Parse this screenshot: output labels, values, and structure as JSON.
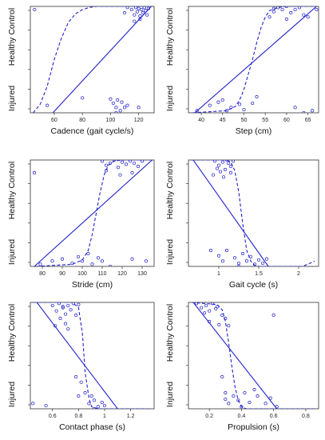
{
  "chart_data": [
    {
      "type": "scatter",
      "xlabel": "Cadence (gait cycle/s)",
      "ylabel_top": "Healthy Control",
      "ylabel_bottom": "Injured",
      "x_ticks": [
        60,
        80,
        100,
        120
      ],
      "xlim": [
        43,
        131
      ],
      "ylim": [
        0,
        1
      ],
      "grid": false,
      "points": [
        [
          46,
          0.97
        ],
        [
          110,
          0.94
        ],
        [
          112,
          0.99
        ],
        [
          115,
          0.97
        ],
        [
          117,
          0.92
        ],
        [
          118,
          0.99
        ],
        [
          119,
          0.95
        ],
        [
          120,
          0.98
        ],
        [
          121,
          0.91
        ],
        [
          122,
          0.97
        ],
        [
          123,
          0.94
        ],
        [
          124,
          0.99
        ],
        [
          125,
          0.96
        ],
        [
          126,
          0.92
        ],
        [
          127,
          0.98
        ],
        [
          117,
          0.86
        ],
        [
          121,
          0.88
        ],
        [
          100,
          0.13
        ],
        [
          102,
          0.09
        ],
        [
          104,
          0.05
        ],
        [
          105,
          0.12
        ],
        [
          107,
          0.02
        ],
        [
          108,
          0.1
        ],
        [
          110,
          0.05
        ],
        [
          112,
          0.07
        ],
        [
          80,
          0.14
        ],
        [
          55,
          0.07
        ],
        [
          104,
          0.0
        ],
        [
          120,
          0.05
        ]
      ],
      "linear_fit": [
        [
          59,
          0
        ],
        [
          129,
          1
        ]
      ],
      "logistic_fit": [
        [
          45,
          0
        ],
        [
          50,
          0.08
        ],
        [
          55,
          0.25
        ],
        [
          60,
          0.5
        ],
        [
          65,
          0.7
        ],
        [
          70,
          0.85
        ],
        [
          75,
          0.93
        ],
        [
          80,
          0.97
        ],
        [
          85,
          0.99
        ],
        [
          90,
          1
        ],
        [
          130,
          1
        ]
      ],
      "color": "#2222cc"
    },
    {
      "type": "scatter",
      "xlabel": "Step (cm)",
      "ylabel_top": "Healthy Control",
      "ylabel_bottom": "Injured",
      "x_ticks": [
        40,
        45,
        50,
        55,
        60,
        65
      ],
      "xlim": [
        37,
        67.5
      ],
      "ylim": [
        0,
        1
      ],
      "grid": false,
      "points": [
        [
          57,
          0.95
        ],
        [
          58,
          0.99
        ],
        [
          59,
          0.97
        ],
        [
          60,
          1.0
        ],
        [
          61,
          0.94
        ],
        [
          62,
          0.97
        ],
        [
          63,
          0.99
        ],
        [
          64,
          0.92
        ],
        [
          56,
          0.9
        ],
        [
          60,
          0.88
        ],
        [
          65,
          0.9
        ],
        [
          67,
          0.97
        ],
        [
          57,
          0.98
        ],
        [
          39,
          0.02
        ],
        [
          42,
          0.07
        ],
        [
          44,
          0.1
        ],
        [
          45,
          0.12
        ],
        [
          47,
          0.05
        ],
        [
          50,
          0.03
        ],
        [
          52,
          0.09
        ],
        [
          53,
          0.15
        ],
        [
          49,
          0.08
        ],
        [
          46,
          0.02
        ],
        [
          62,
          0.05
        ],
        [
          64,
          0.0
        ],
        [
          66,
          0.02
        ]
      ],
      "linear_fit": [
        [
          38.5,
          0
        ],
        [
          67,
          1
        ]
      ],
      "logistic_fit": [
        [
          38,
          0
        ],
        [
          46,
          0.02
        ],
        [
          48,
          0.06
        ],
        [
          49,
          0.12
        ],
        [
          50,
          0.22
        ],
        [
          51,
          0.36
        ],
        [
          52,
          0.5
        ],
        [
          53,
          0.66
        ],
        [
          54,
          0.8
        ],
        [
          55,
          0.9
        ],
        [
          56,
          0.96
        ],
        [
          58,
          0.99
        ],
        [
          60,
          1
        ],
        [
          67,
          1
        ]
      ],
      "color": "#2222cc"
    },
    {
      "type": "scatter",
      "xlabel": "Stride (cm)",
      "ylabel_top": "Healthy Control",
      "ylabel_bottom": "Injured",
      "x_ticks": [
        80,
        90,
        100,
        110,
        120,
        130
      ],
      "xlim": [
        74,
        136
      ],
      "ylim": [
        0,
        1
      ],
      "grid": false,
      "points": [
        [
          110,
          0.99
        ],
        [
          112,
          0.95
        ],
        [
          114,
          0.97
        ],
        [
          116,
          1.0
        ],
        [
          118,
          0.93
        ],
        [
          120,
          0.98
        ],
        [
          122,
          0.96
        ],
        [
          124,
          0.99
        ],
        [
          126,
          0.97
        ],
        [
          128,
          0.94
        ],
        [
          130,
          0.99
        ],
        [
          112,
          0.9
        ],
        [
          119,
          0.86
        ],
        [
          125,
          0.88
        ],
        [
          76,
          0.88
        ],
        [
          79,
          0.02
        ],
        [
          85,
          0.05
        ],
        [
          90,
          0.07
        ],
        [
          95,
          0.03
        ],
        [
          98,
          0.09
        ],
        [
          100,
          0.05
        ],
        [
          103,
          0.12
        ],
        [
          105,
          0.02
        ],
        [
          108,
          0.08
        ],
        [
          110,
          0.05
        ],
        [
          125,
          0.07
        ],
        [
          132,
          0.05
        ],
        [
          114,
          0.0
        ]
      ],
      "linear_fit": [
        [
          76,
          0
        ],
        [
          135,
          1
        ]
      ],
      "logistic_fit": [
        [
          77,
          0
        ],
        [
          95,
          0.02
        ],
        [
          100,
          0.06
        ],
        [
          103,
          0.15
        ],
        [
          105,
          0.3
        ],
        [
          107,
          0.5
        ],
        [
          109,
          0.7
        ],
        [
          111,
          0.86
        ],
        [
          113,
          0.95
        ],
        [
          116,
          0.99
        ],
        [
          120,
          1
        ],
        [
          134,
          1
        ]
      ],
      "color": "#2222cc"
    },
    {
      "type": "scatter",
      "xlabel": "Gait cycle (s)",
      "ylabel_top": "Healthy Control",
      "ylabel_bottom": "Injured",
      "x_ticks": [
        1.0,
        1.5,
        2.0
      ],
      "xlim": [
        0.62,
        2.25
      ],
      "ylim": [
        0,
        1
      ],
      "grid": false,
      "points": [
        [
          0.95,
          0.99
        ],
        [
          1.0,
          0.95
        ],
        [
          1.05,
          0.98
        ],
        [
          1.1,
          1.0
        ],
        [
          1.15,
          0.94
        ],
        [
          0.98,
          0.92
        ],
        [
          1.02,
          0.89
        ],
        [
          1.08,
          0.91
        ],
        [
          1.12,
          0.97
        ],
        [
          1.18,
          0.99
        ],
        [
          0.93,
          0.86
        ],
        [
          1.06,
          0.84
        ],
        [
          1.15,
          0.88
        ],
        [
          0.9,
          0.15
        ],
        [
          1.0,
          0.1
        ],
        [
          1.05,
          0.05
        ],
        [
          1.1,
          0.15
        ],
        [
          1.2,
          0.08
        ],
        [
          1.25,
          0.03
        ],
        [
          1.3,
          0.12
        ],
        [
          1.35,
          0.05
        ],
        [
          1.4,
          0.09
        ],
        [
          1.45,
          0.02
        ],
        [
          1.5,
          0.06
        ],
        [
          1.55,
          0.03
        ],
        [
          1.6,
          0.07
        ],
        [
          1.25,
          0.0
        ]
      ],
      "linear_fit": [
        [
          0.68,
          1
        ],
        [
          1.62,
          0
        ]
      ],
      "logistic_fit": [
        [
          0.65,
          1
        ],
        [
          1.1,
          1
        ],
        [
          1.15,
          0.98
        ],
        [
          1.2,
          0.9
        ],
        [
          1.25,
          0.7
        ],
        [
          1.3,
          0.4
        ],
        [
          1.35,
          0.15
        ],
        [
          1.4,
          0.05
        ],
        [
          1.45,
          0.01
        ],
        [
          1.5,
          0
        ],
        [
          2.05,
          0
        ],
        [
          2.2,
          0.05
        ]
      ],
      "color": "#2222cc"
    },
    {
      "type": "scatter",
      "xlabel": "Contact phase  (s)",
      "ylabel_top": "Healthy Control",
      "ylabel_bottom": "Injured",
      "x_ticks": [
        0.6,
        0.8,
        1.0,
        1.2
      ],
      "xlim": [
        0.43,
        1.38
      ],
      "ylim": [
        0,
        1
      ],
      "grid": false,
      "points": [
        [
          0.6,
          0.97
        ],
        [
          0.63,
          0.92
        ],
        [
          0.65,
          0.99
        ],
        [
          0.68,
          0.95
        ],
        [
          0.7,
          0.89
        ],
        [
          0.72,
          0.97
        ],
        [
          0.74,
          0.93
        ],
        [
          0.76,
          0.99
        ],
        [
          0.66,
          0.85
        ],
        [
          0.7,
          0.8
        ],
        [
          0.72,
          0.75
        ],
        [
          0.78,
          0.88
        ],
        [
          0.62,
          0.78
        ],
        [
          0.68,
          0.96
        ],
        [
          0.8,
          0.98
        ],
        [
          0.78,
          0.3
        ],
        [
          0.82,
          0.25
        ],
        [
          0.85,
          0.15
        ],
        [
          0.88,
          0.05
        ],
        [
          0.9,
          0.12
        ],
        [
          0.92,
          0.08
        ],
        [
          0.95,
          0.02
        ],
        [
          0.98,
          0.06
        ],
        [
          1.0,
          0.03
        ],
        [
          0.45,
          0.05
        ],
        [
          0.55,
          0.03
        ],
        [
          0.8,
          0.12
        ],
        [
          0.92,
          0.0
        ]
      ],
      "linear_fit": [
        [
          0.48,
          1
        ],
        [
          1.1,
          0
        ]
      ],
      "logistic_fit": [
        [
          0.45,
          1
        ],
        [
          0.75,
          1
        ],
        [
          0.8,
          0.95
        ],
        [
          0.83,
          0.7
        ],
        [
          0.85,
          0.35
        ],
        [
          0.88,
          0.1
        ],
        [
          0.9,
          0.02
        ],
        [
          0.95,
          0
        ],
        [
          1.36,
          0
        ]
      ],
      "color": "#2222cc"
    },
    {
      "type": "scatter",
      "xlabel": "Propulsion (s)",
      "ylabel_top": "Healthy Control",
      "ylabel_bottom": "Injured",
      "x_ticks": [
        0.2,
        0.4,
        0.6,
        0.8
      ],
      "xlim": [
        0.07,
        0.88
      ],
      "ylim": [
        0,
        1
      ],
      "grid": false,
      "points": [
        [
          0.12,
          0.99
        ],
        [
          0.15,
          0.95
        ],
        [
          0.18,
          0.97
        ],
        [
          0.2,
          0.92
        ],
        [
          0.22,
          0.99
        ],
        [
          0.25,
          0.96
        ],
        [
          0.28,
          0.88
        ],
        [
          0.3,
          0.85
        ],
        [
          0.17,
          0.9
        ],
        [
          0.2,
          0.82
        ],
        [
          0.24,
          0.94
        ],
        [
          0.26,
          0.79
        ],
        [
          0.32,
          0.78
        ],
        [
          0.6,
          0.88
        ],
        [
          0.28,
          0.3
        ],
        [
          0.3,
          0.15
        ],
        [
          0.32,
          0.05
        ],
        [
          0.35,
          0.12
        ],
        [
          0.38,
          0.08
        ],
        [
          0.4,
          0.02
        ],
        [
          0.42,
          0.15
        ],
        [
          0.45,
          0.06
        ],
        [
          0.5,
          0.12
        ],
        [
          0.55,
          0.05
        ],
        [
          0.58,
          0.1
        ],
        [
          0.3,
          0.09
        ],
        [
          0.62,
          0.02
        ],
        [
          0.48,
          0.18
        ]
      ],
      "linear_fit": [
        [
          0.1,
          1
        ],
        [
          0.62,
          0
        ]
      ],
      "logistic_fit": [
        [
          0.09,
          1
        ],
        [
          0.25,
          0.98
        ],
        [
          0.28,
          0.93
        ],
        [
          0.3,
          0.82
        ],
        [
          0.32,
          0.62
        ],
        [
          0.34,
          0.4
        ],
        [
          0.36,
          0.2
        ],
        [
          0.38,
          0.08
        ],
        [
          0.4,
          0.02
        ],
        [
          0.43,
          0
        ],
        [
          0.86,
          0
        ]
      ],
      "color": "#2222cc"
    }
  ]
}
